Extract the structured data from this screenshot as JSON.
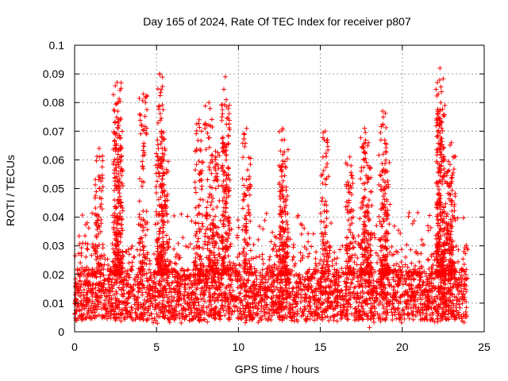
{
  "chart_data": {
    "type": "scatter",
    "title": "Day 165 of 2024, Rate Of TEC Index for receiver p807",
    "xlabel": "GPS time / hours",
    "ylabel": "ROTI / TECUs",
    "xlim": [
      0,
      25
    ],
    "ylim": [
      0,
      0.1
    ],
    "x_ticks": [
      0,
      5,
      10,
      15,
      20,
      25
    ],
    "x_tick_labels": [
      "0",
      "5",
      "10",
      "15",
      "20",
      "25"
    ],
    "y_ticks": [
      0,
      0.01,
      0.02,
      0.03,
      0.04,
      0.05,
      0.06,
      0.07,
      0.08,
      0.09,
      0.1
    ],
    "y_tick_labels": [
      "0",
      "0.01",
      "0.02",
      "0.03",
      "0.04",
      "0.05",
      "0.06",
      "0.07",
      "0.08",
      "0.09",
      "0.1"
    ],
    "grid": true,
    "marker": "+",
    "color": "#ff0000",
    "series": [
      {
        "name": "p807",
        "note": "dense cloud of ~10000 samples over 0-24 h; representative points listed",
        "base_range": [
          0.003,
          0.03
        ],
        "peaks": [
          {
            "x": 2.6,
            "y": 0.087
          },
          {
            "x": 2.65,
            "y": 0.08
          },
          {
            "x": 2.7,
            "y": 0.072
          },
          {
            "x": 4.2,
            "y": 0.083
          },
          {
            "x": 5.2,
            "y": 0.09
          },
          {
            "x": 5.3,
            "y": 0.07
          },
          {
            "x": 7.6,
            "y": 0.074
          },
          {
            "x": 8.2,
            "y": 0.08
          },
          {
            "x": 9.2,
            "y": 0.089
          },
          {
            "x": 9.25,
            "y": 0.081
          },
          {
            "x": 10.5,
            "y": 0.071
          },
          {
            "x": 12.7,
            "y": 0.071
          },
          {
            "x": 15.3,
            "y": 0.07
          },
          {
            "x": 17.7,
            "y": 0.071
          },
          {
            "x": 18.8,
            "y": 0.077
          },
          {
            "x": 22.3,
            "y": 0.092
          },
          {
            "x": 22.35,
            "y": 0.08
          },
          {
            "x": 22.3,
            "y": 0.077
          },
          {
            "x": 23.0,
            "y": 0.066
          },
          {
            "x": 1.5,
            "y": 0.064
          },
          {
            "x": 5.5,
            "y": 0.064
          },
          {
            "x": 16.8,
            "y": 0.061
          },
          {
            "x": 19.0,
            "y": 0.063
          },
          {
            "x": 8.6,
            "y": 0.063
          },
          {
            "x": 12.8,
            "y": 0.067
          },
          {
            "x": 17.9,
            "y": 0.058
          },
          {
            "x": 22.8,
            "y": 0.056
          }
        ],
        "minimum": {
          "x": 18.0,
          "y": 0.0015
        }
      }
    ]
  }
}
